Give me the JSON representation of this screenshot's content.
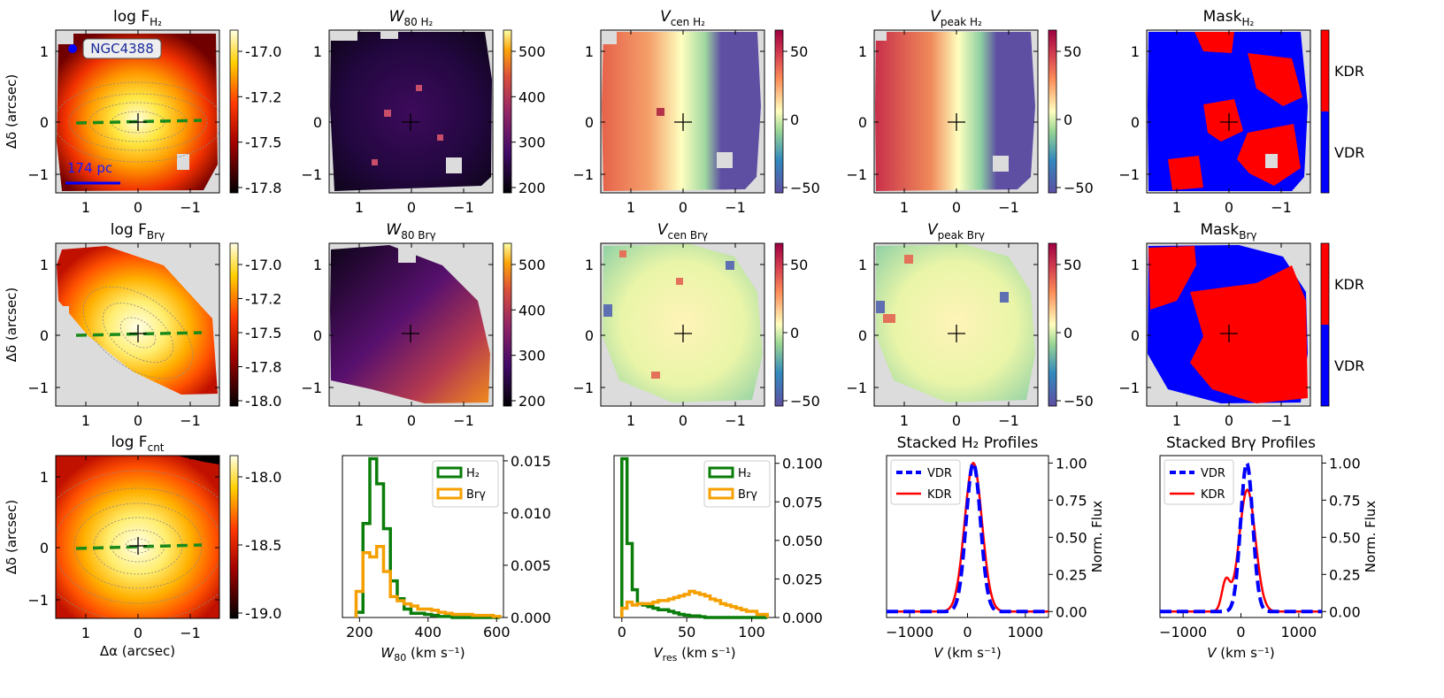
{
  "chart_data": [
    {
      "panel": "fluxH2",
      "type": "heatmap",
      "title": {
        "base": "log F",
        "sub": "H₂",
        "italic": false
      },
      "xlabel": "",
      "ylabel": "Δδ (arcsec)",
      "xticks": [
        "1",
        "0",
        "−1"
      ],
      "yticks": [
        "1",
        "0",
        "−1"
      ],
      "colorbar": {
        "cmap": "hot",
        "ticks": [
          "-17.0",
          "-17.2",
          "-17.5",
          "-17.8"
        ]
      },
      "annotations": {
        "galaxy": "NGC4388",
        "scale": "174 pc"
      }
    },
    {
      "panel": "w80H2",
      "type": "heatmap",
      "title": {
        "base": "W",
        "sub": "80 H₂",
        "italic": true
      },
      "xticks": [
        "1",
        "0",
        "−1"
      ],
      "yticks": [
        "1",
        "0",
        "−1"
      ],
      "colorbar": {
        "cmap": "inferno",
        "ticks": [
          "500",
          "400",
          "300",
          "200"
        ]
      }
    },
    {
      "panel": "vcenH2",
      "type": "heatmap",
      "title": {
        "base": "V",
        "sub": "cen H₂",
        "italic": true
      },
      "xticks": [
        "1",
        "0",
        "−1"
      ],
      "yticks": [
        "1",
        "0",
        "−1"
      ],
      "colorbar": {
        "cmap": "spectral",
        "ticks": [
          "50",
          "0",
          "−50"
        ]
      }
    },
    {
      "panel": "vpeakH2",
      "type": "heatmap",
      "title": {
        "base": "V",
        "sub": "peak H₂",
        "italic": true
      },
      "xticks": [
        "1",
        "0",
        "−1"
      ],
      "yticks": [
        "1",
        "0",
        "−1"
      ],
      "colorbar": {
        "cmap": "spectral",
        "ticks": [
          "50",
          "0",
          "−50"
        ]
      }
    },
    {
      "panel": "maskH2",
      "type": "heatmap",
      "title": {
        "base": "Mask",
        "sub": "H₂",
        "italic": false
      },
      "xticks": [
        "1",
        "0",
        "−1"
      ],
      "yticks": [
        "1",
        "0",
        "−1"
      ],
      "colorbar": {
        "cmap": "binary",
        "labels": [
          "KDR",
          "VDR"
        ]
      }
    },
    {
      "panel": "fluxBrg",
      "type": "heatmap",
      "title": {
        "base": "log F",
        "sub": "Brγ",
        "italic": false
      },
      "ylabel": "Δδ (arcsec)",
      "xticks": [
        "1",
        "0",
        "−1"
      ],
      "yticks": [
        "1",
        "0",
        "−1"
      ],
      "colorbar": {
        "cmap": "hot",
        "ticks": [
          "-17.0",
          "-17.2",
          "-17.5",
          "-17.8",
          "-18.0"
        ]
      }
    },
    {
      "panel": "w80Brg",
      "type": "heatmap",
      "title": {
        "base": "W",
        "sub": "80 Brγ",
        "italic": true
      },
      "xticks": [
        "1",
        "0",
        "−1"
      ],
      "yticks": [
        "1",
        "0",
        "−1"
      ],
      "colorbar": {
        "cmap": "inferno",
        "ticks": [
          "500",
          "400",
          "300",
          "200"
        ]
      }
    },
    {
      "panel": "vcenBrg",
      "type": "heatmap",
      "title": {
        "base": "V",
        "sub": "cen Brγ",
        "italic": true
      },
      "xticks": [
        "1",
        "0",
        "−1"
      ],
      "yticks": [
        "1",
        "0",
        "−1"
      ],
      "colorbar": {
        "cmap": "spectral",
        "ticks": [
          "50",
          "0",
          "−50"
        ]
      }
    },
    {
      "panel": "vpeakBrg",
      "type": "heatmap",
      "title": {
        "base": "V",
        "sub": "peak Brγ",
        "italic": true
      },
      "xticks": [
        "1",
        "0",
        "−1"
      ],
      "yticks": [
        "1",
        "0",
        "−1"
      ],
      "colorbar": {
        "cmap": "spectral",
        "ticks": [
          "50",
          "0",
          "−50"
        ]
      }
    },
    {
      "panel": "maskBrg",
      "type": "heatmap",
      "title": {
        "base": "Mask",
        "sub": "Brγ",
        "italic": false
      },
      "xticks": [
        "1",
        "0",
        "−1"
      ],
      "yticks": [
        "1",
        "0",
        "−1"
      ],
      "colorbar": {
        "cmap": "binary",
        "labels": [
          "KDR",
          "VDR"
        ]
      }
    },
    {
      "panel": "fluxCnt",
      "type": "heatmap",
      "title": {
        "base": "log F",
        "sub": "cnt",
        "italic": false
      },
      "xlabel": "Δα (arcsec)",
      "ylabel": "Δδ (arcsec)",
      "xticks": [
        "1",
        "0",
        "−1"
      ],
      "yticks": [
        "1",
        "0",
        "−1"
      ],
      "colorbar": {
        "cmap": "hot",
        "ticks": [
          "-18.0",
          "-18.5",
          "-19.0"
        ]
      }
    },
    {
      "panel": "histW80",
      "type": "bar",
      "xlabel": {
        "base": "W",
        "sub": "80",
        "unit": " (km s⁻¹)"
      },
      "xlim": [
        150,
        620
      ],
      "ylim": [
        0,
        0.0155
      ],
      "xticks": [
        200,
        400,
        600
      ],
      "yticks": [
        0.0,
        0.005,
        0.01,
        0.015
      ],
      "ytick_labels": [
        "0.000",
        "0.005",
        "0.010",
        "0.015"
      ],
      "bin_edges": [
        190,
        210,
        230,
        250,
        270,
        290,
        310,
        330,
        350,
        370,
        390,
        410,
        430,
        450,
        470,
        490,
        510,
        530,
        550,
        570,
        590,
        610
      ],
      "series": [
        {
          "name": "H₂",
          "color": "#0a7d0a",
          "values": [
            0.0005,
            0.009,
            0.0152,
            0.0128,
            0.0085,
            0.0035,
            0.0018,
            0.0008,
            0.0004,
            0.0004,
            0.0003,
            0.0002,
            0.0001,
            0.0001,
            0,
            0,
            0,
            0,
            0,
            0,
            0
          ]
        },
        {
          "name": "Brγ",
          "color": "#f5a000",
          "values": [
            0.0025,
            0.0062,
            0.0058,
            0.0068,
            0.0044,
            0.002,
            0.0016,
            0.0013,
            0.0011,
            0.0008,
            0.0008,
            0.0007,
            0.0005,
            0.0004,
            0.0003,
            0.0003,
            0.0003,
            0.0002,
            0.0002,
            0.0002,
            0.0001
          ]
        }
      ]
    },
    {
      "panel": "histVres",
      "type": "bar",
      "xlabel": {
        "base": "V",
        "sub": "res",
        "unit": " (km s⁻¹)"
      },
      "xlim": [
        -6,
        118
      ],
      "ylim": [
        0,
        0.105
      ],
      "xticks": [
        0,
        50,
        100
      ],
      "yticks": [
        0.0,
        0.025,
        0.05,
        0.075,
        0.1
      ],
      "ytick_labels": [
        "0.000",
        "0.025",
        "0.050",
        "0.075",
        "0.100"
      ],
      "bin_edges": [
        0,
        4,
        8,
        12,
        16,
        20,
        24,
        28,
        32,
        36,
        40,
        44,
        48,
        52,
        56,
        60,
        64,
        68,
        72,
        76,
        80,
        84,
        88,
        92,
        96,
        100,
        104,
        108,
        112
      ],
      "series": [
        {
          "name": "H₂",
          "color": "#0a7d0a",
          "values": [
            0.103,
            0.048,
            0.018,
            0.009,
            0.008,
            0.007,
            0.006,
            0.005,
            0.005,
            0.004,
            0.003,
            0.002,
            0.0015,
            0.001,
            0.001,
            0.0005,
            0,
            0,
            0,
            0,
            0,
            0,
            0,
            0,
            0,
            0,
            0,
            0
          ]
        },
        {
          "name": "Brγ",
          "color": "#f5a000",
          "values": [
            0.006,
            0.01,
            0.008,
            0.009,
            0.009,
            0.009,
            0.01,
            0.011,
            0.011,
            0.012,
            0.013,
            0.014,
            0.015,
            0.017,
            0.016,
            0.015,
            0.014,
            0.012,
            0.011,
            0.009,
            0.008,
            0.007,
            0.006,
            0.005,
            0.004,
            0.004,
            0.002,
            0.002
          ]
        }
      ]
    },
    {
      "panel": "profH2",
      "type": "line",
      "title": {
        "base": "Stacked H₂ Profiles"
      },
      "xlabel": "V (km s⁻¹)",
      "ylabel": "Norm. Flux",
      "xlim": [
        -1400,
        1400
      ],
      "ylim": [
        -0.04,
        1.05
      ],
      "xticks": [
        -1000,
        0,
        1000
      ],
      "xtick_labels": [
        "−1000",
        "0",
        "1000"
      ],
      "yticks": [
        0,
        0.25,
        0.5,
        0.75,
        1.0
      ],
      "ytick_labels": [
        "0.00",
        "0.25",
        "0.50",
        "0.75",
        "1.00"
      ],
      "series": [
        {
          "name": "VDR",
          "color": "#0000ff",
          "style": "dashed",
          "profile": [
            {
              "amp": 1.0,
              "center": 100,
              "sigma": 125
            }
          ]
        },
        {
          "name": "KDR",
          "color": "#ff0000",
          "style": "solid",
          "profile": [
            {
              "amp": 1.0,
              "center": 100,
              "sigma": 150
            }
          ]
        }
      ]
    },
    {
      "panel": "profBrg",
      "type": "line",
      "title": {
        "base": "Stacked Brγ Profiles"
      },
      "xlabel": "V (km s⁻¹)",
      "ylabel": "Norm. Flux",
      "xlim": [
        -1400,
        1400
      ],
      "ylim": [
        -0.04,
        1.05
      ],
      "xticks": [
        -1000,
        0,
        1000
      ],
      "xtick_labels": [
        "−1000",
        "0",
        "1000"
      ],
      "yticks": [
        0,
        0.25,
        0.5,
        0.75,
        1.0
      ],
      "ytick_labels": [
        "0.00",
        "0.25",
        "0.50",
        "0.75",
        "1.00"
      ],
      "series": [
        {
          "name": "VDR",
          "color": "#0000ff",
          "style": "dashed",
          "profile": [
            {
              "amp": 1.0,
              "center": 100,
              "sigma": 105
            }
          ]
        },
        {
          "name": "KDR",
          "color": "#ff0000",
          "style": "solid",
          "profile": [
            {
              "amp": 0.82,
              "center": 110,
              "sigma": 140
            },
            {
              "amp": 0.2,
              "center": -260,
              "sigma": 70
            }
          ]
        }
      ]
    }
  ]
}
